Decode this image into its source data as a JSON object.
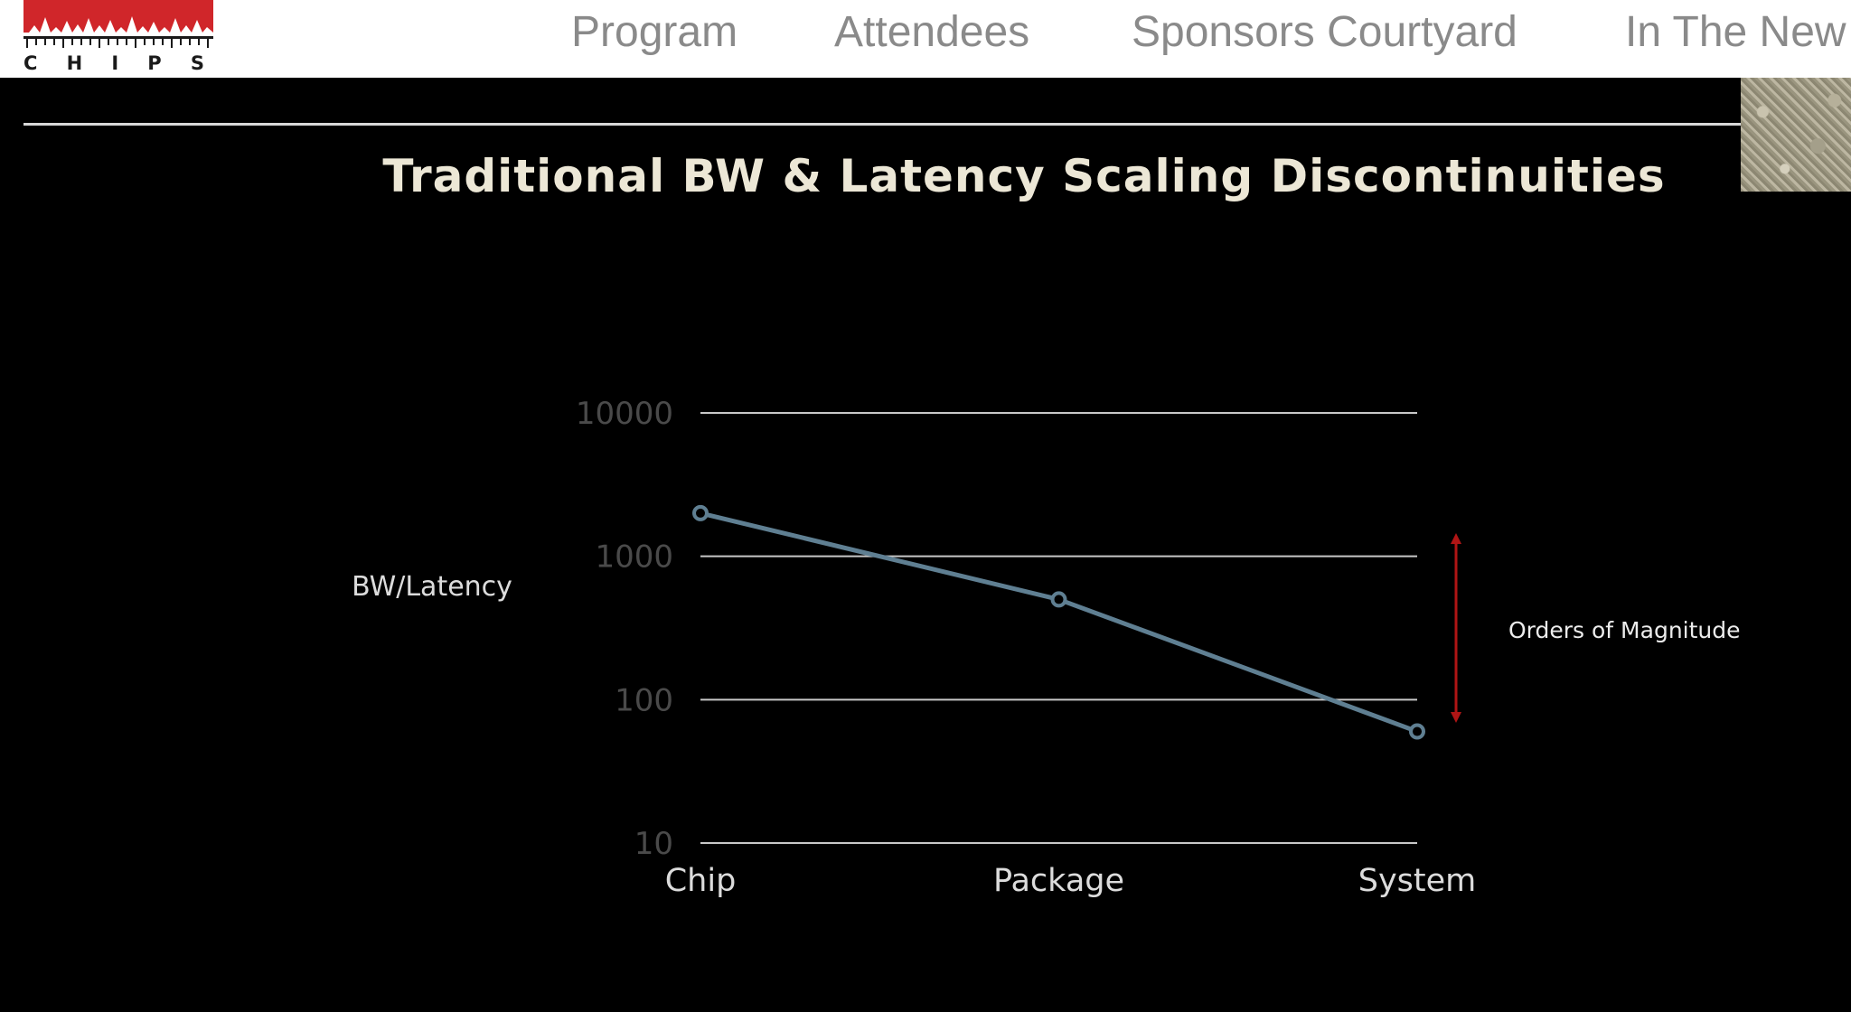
{
  "logo": {
    "letters": [
      "C",
      "H",
      "I",
      "P",
      "S"
    ]
  },
  "nav": [
    {
      "label": "Program"
    },
    {
      "label": "Attendees"
    },
    {
      "label": "Sponsors Courtyard"
    },
    {
      "label": "In The New"
    }
  ],
  "slide": {
    "title": "Traditional BW & Latency Scaling Discontinuities",
    "annotation": "Orders of Magnitude"
  },
  "colors": {
    "line": "#5f7f92",
    "arrow": "#b01515",
    "grid": "#c8c8c8",
    "logo_red": "#d0262a"
  },
  "chart_data": {
    "type": "line",
    "categories": [
      "Chip",
      "Package",
      "System"
    ],
    "y_scale": "log",
    "ylim": [
      10,
      10000
    ],
    "y_ticks": [
      10000,
      1000,
      100,
      10
    ],
    "ylabel": "BW/Latency",
    "grid": true,
    "series": [
      {
        "values": [
          2000,
          500,
          60
        ]
      }
    ]
  }
}
